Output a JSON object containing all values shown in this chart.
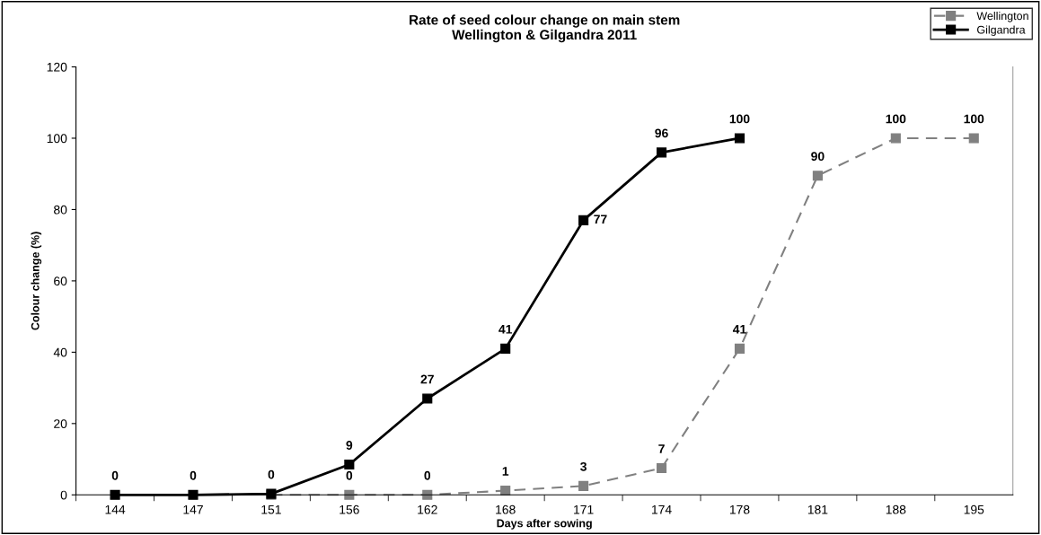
{
  "chart_data": {
    "type": "line",
    "title": "Rate of seed colour change on main stem\nWellington & Gilgandra 2011",
    "xlabel": "Days after sowing",
    "ylabel": "Colour change (%)",
    "categories": [
      "144",
      "147",
      "151",
      "156",
      "162",
      "168",
      "171",
      "174",
      "178",
      "181",
      "188",
      "195"
    ],
    "series": [
      {
        "name": "Wellington",
        "color": "#808080",
        "line_style": "dashed",
        "marker": "square",
        "values": [
          null,
          null,
          0,
          0,
          0,
          1.2,
          2.5,
          7.5,
          41,
          89.5,
          100,
          100
        ],
        "value_labels": [
          null,
          null,
          null,
          "0",
          "0",
          "1",
          "3",
          "7",
          "41",
          "90",
          "100",
          "100"
        ]
      },
      {
        "name": "Gilgandra",
        "color": "#000000",
        "line_style": "solid",
        "marker": "square",
        "values": [
          0,
          0,
          0.3,
          8.5,
          27,
          41,
          77,
          96,
          100,
          null,
          null,
          null
        ],
        "value_labels": [
          "0",
          "0",
          "0",
          "9",
          "27",
          "41",
          "77",
          "96",
          "100",
          null,
          null,
          null
        ]
      }
    ],
    "ylim": [
      0,
      120
    ],
    "yticks": [
      0,
      20,
      40,
      60,
      80,
      100,
      120
    ],
    "grid": false,
    "legend": "top right"
  }
}
